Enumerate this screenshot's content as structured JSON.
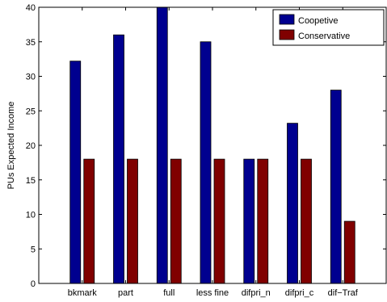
{
  "chart_data": {
    "type": "bar",
    "title": "",
    "xlabel": "",
    "ylabel": "PUs Expected Income",
    "ylim": [
      0,
      40
    ],
    "yticks": [
      0,
      5,
      10,
      15,
      20,
      25,
      30,
      35,
      40
    ],
    "grid": false,
    "legend_position": "top-right",
    "categories": [
      "bkmark",
      "part",
      "full",
      "less fine",
      "difpri_n",
      "difpri_c",
      "dif−Traf"
    ],
    "series": [
      {
        "name": "Coopetive",
        "color": "#00008f",
        "values": [
          32.2,
          36,
          40,
          35,
          18,
          23.2,
          28
        ]
      },
      {
        "name": "Conservative",
        "color": "#800000",
        "values": [
          18,
          18,
          18,
          18,
          18,
          18,
          9
        ]
      }
    ]
  }
}
